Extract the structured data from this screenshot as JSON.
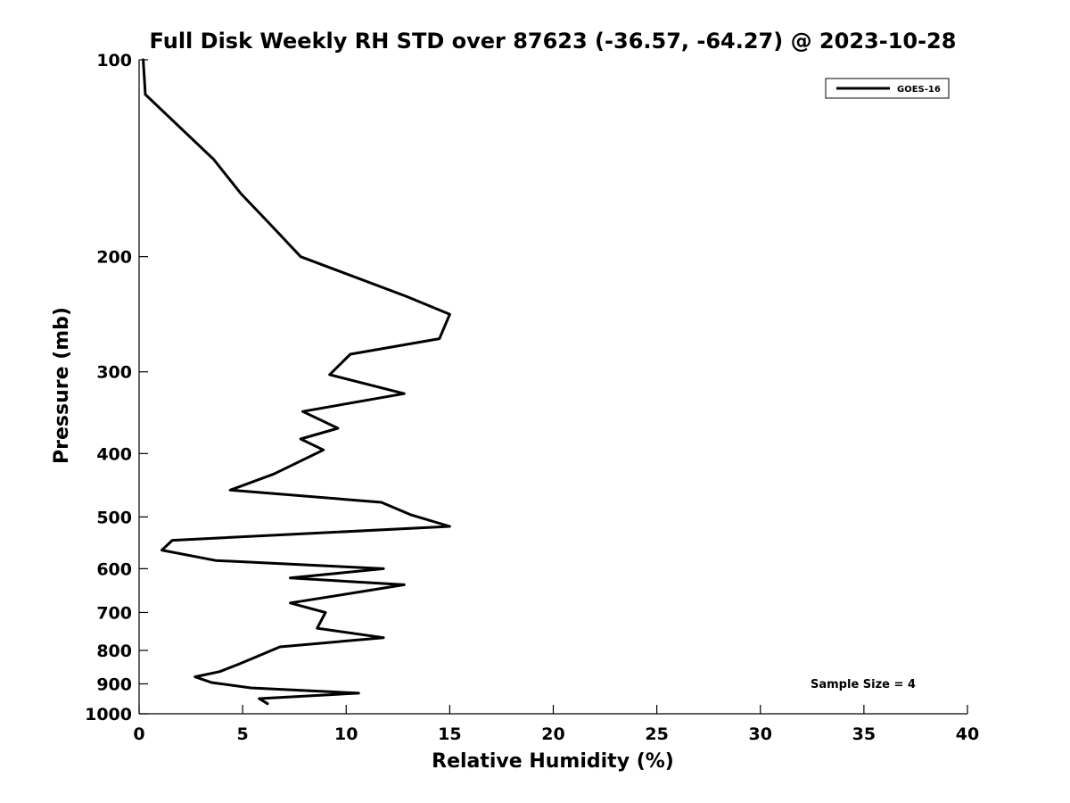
{
  "chart_data": {
    "type": "line",
    "title": "Full Disk Weekly RH STD over 87623 (-36.57, -64.27) @ 2023-10-28",
    "xlabel": "Relative Humidity (%)",
    "ylabel": "Pressure (mb)",
    "xlim": [
      0,
      40
    ],
    "ylim": [
      100,
      1000
    ],
    "y_scale": "log",
    "y_inverted": true,
    "x_ticks": [
      0,
      5,
      10,
      15,
      20,
      25,
      30,
      35,
      40
    ],
    "y_ticks": [
      100,
      200,
      300,
      400,
      500,
      600,
      700,
      800,
      900,
      1000
    ],
    "grid": false,
    "legend_position": "top-right",
    "annotation": "Sample Size = 4",
    "series": [
      {
        "name": "GOES-16",
        "color": "#000000",
        "x": [
          0.2,
          0.3,
          3.6,
          4.9,
          6.3,
          7.8,
          12.9,
          15.0,
          14.5,
          10.2,
          9.2,
          12.8,
          7.9,
          9.6,
          7.8,
          8.9,
          6.5,
          4.4,
          11.7,
          13.1,
          15.0,
          1.6,
          1.1,
          3.7,
          11.8,
          7.3,
          12.8,
          10.8,
          7.3,
          9.0,
          8.6,
          11.8,
          6.8,
          5.6,
          4.8,
          3.9,
          2.7,
          3.5,
          5.4,
          10.6,
          5.8,
          6.2
        ],
        "y": [
          100,
          113,
          142,
          160,
          178,
          200,
          230,
          245,
          267,
          282,
          303,
          324,
          345,
          366,
          380,
          395,
          430,
          455,
          475,
          496,
          517,
          543,
          562,
          583,
          600,
          620,
          635,
          650,
          677,
          700,
          740,
          765,
          790,
          820,
          840,
          862,
          878,
          896,
          913,
          930,
          948,
          965
        ]
      }
    ]
  }
}
